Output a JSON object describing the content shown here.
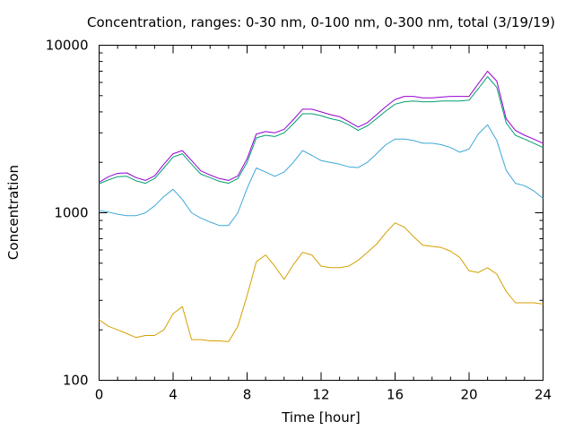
{
  "chart_data": {
    "type": "line",
    "title": "Concentration, ranges: 0-30 nm, 0-100 nm, 0-300 nm, total (3/19/19)",
    "xlabel": "Time [hour]",
    "ylabel": "Concentration",
    "xlim": [
      0,
      24
    ],
    "ylim": [
      100,
      10000
    ],
    "yscale": "log",
    "grid": false,
    "x_ticks": [
      "0",
      "4",
      "8",
      "12",
      "16",
      "20",
      "24"
    ],
    "y_ticks": [
      "100",
      "1000",
      "10000"
    ],
    "x": [
      0,
      0.5,
      1,
      1.5,
      2,
      2.5,
      3,
      3.5,
      4,
      4.5,
      5,
      5.5,
      6,
      6.5,
      7,
      7.5,
      8,
      8.5,
      9,
      9.5,
      10,
      10.5,
      11,
      11.5,
      12,
      12.5,
      13,
      13.5,
      14,
      14.5,
      15,
      15.5,
      16,
      16.5,
      17,
      17.5,
      18,
      18.5,
      19,
      19.5,
      20,
      20.5,
      21,
      21.5,
      22,
      22.5,
      23,
      23.5,
      24
    ],
    "series": [
      {
        "color": "#d4a000",
        "values": [
          230,
          210,
          200,
          190,
          180,
          185,
          185,
          200,
          250,
          275,
          175,
          175,
          172,
          172,
          170,
          210,
          320,
          510,
          560,
          480,
          400,
          490,
          580,
          560,
          480,
          470,
          470,
          480,
          520,
          580,
          650,
          760,
          870,
          820,
          720,
          640,
          630,
          620,
          590,
          540,
          450,
          440,
          470,
          430,
          340,
          290,
          290,
          290,
          285
        ]
      },
      {
        "color": "#3da7d7",
        "values": [
          1030,
          1010,
          980,
          960,
          960,
          1000,
          1100,
          1250,
          1380,
          1200,
          1000,
          930,
          880,
          840,
          840,
          1000,
          1400,
          1850,
          1750,
          1650,
          1750,
          2000,
          2350,
          2200,
          2050,
          2000,
          1950,
          1880,
          1860,
          2000,
          2250,
          2550,
          2750,
          2750,
          2700,
          2600,
          2600,
          2550,
          2450,
          2300,
          2400,
          2950,
          3350,
          2700,
          1800,
          1500,
          1450,
          1350,
          1220
        ]
      },
      {
        "color": "#009e73",
        "values": [
          1490,
          1570,
          1640,
          1650,
          1550,
          1500,
          1600,
          1850,
          2150,
          2250,
          1950,
          1700,
          1620,
          1540,
          1500,
          1600,
          2000,
          2800,
          2900,
          2850,
          3000,
          3400,
          3900,
          3900,
          3800,
          3650,
          3550,
          3350,
          3100,
          3300,
          3650,
          4050,
          4450,
          4600,
          4650,
          4600,
          4600,
          4650,
          4650,
          4650,
          4700,
          5500,
          6500,
          5600,
          3450,
          2900,
          2750,
          2600,
          2450
        ]
      },
      {
        "color": "#9400d3",
        "values": [
          1520,
          1640,
          1720,
          1730,
          1620,
          1560,
          1660,
          1950,
          2250,
          2350,
          2050,
          1780,
          1680,
          1600,
          1560,
          1660,
          2100,
          2950,
          3050,
          3000,
          3150,
          3600,
          4150,
          4150,
          4000,
          3850,
          3750,
          3500,
          3250,
          3450,
          3850,
          4300,
          4750,
          4950,
          4950,
          4850,
          4850,
          4900,
          4950,
          4950,
          4950,
          5900,
          7000,
          6100,
          3650,
          3100,
          2900,
          2750,
          2600
        ]
      }
    ]
  }
}
